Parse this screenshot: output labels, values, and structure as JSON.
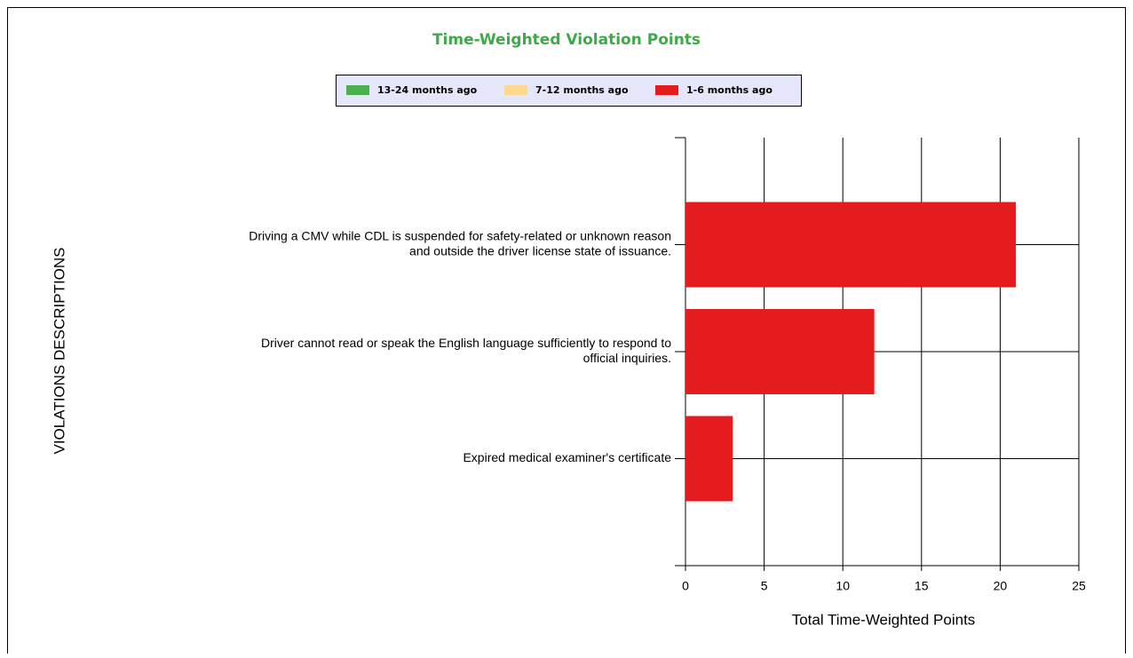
{
  "chart_data": {
    "type": "hbar-stacked",
    "title": "Time-Weighted Violation Points",
    "y_label": "VIOLATIONS DESCRIPTIONS",
    "x_label": "Total Time-Weighted Points",
    "categories": [
      [
        "Driving a CMV while CDL is suspended for safety-related or unknown reason",
        "and outside the driver  license state of issuance."
      ],
      [
        "Driver cannot read or speak the English language sufficiently to respond to",
        "official inquiries."
      ],
      [
        "Expired medical examiner's certificate"
      ]
    ],
    "series": [
      {
        "name": "13-24 months ago",
        "color": "#4caf50",
        "values": [
          0,
          0,
          0
        ]
      },
      {
        "name": "7-12 months ago",
        "color": "#ffd890",
        "values": [
          0,
          0,
          0
        ]
      },
      {
        "name": "1-6 months ago",
        "color": "#e41c1e",
        "values": [
          21,
          12,
          3
        ]
      }
    ],
    "xlim": [
      0,
      25
    ],
    "xticks": [
      0,
      5,
      10,
      15,
      20,
      25
    ],
    "grid": true,
    "legend": "top"
  }
}
